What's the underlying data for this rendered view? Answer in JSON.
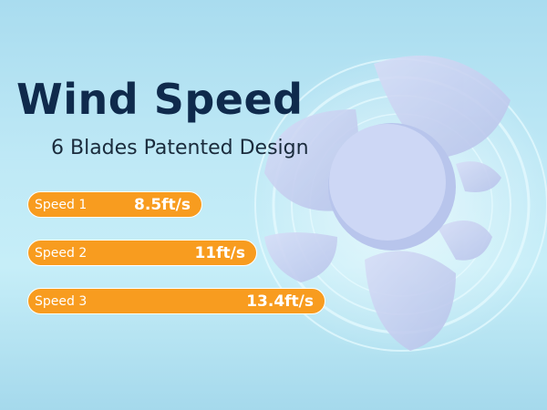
{
  "title": "Wind Speed",
  "subtitle": "6 Blades Patented Design",
  "speeds": [
    {
      "label": "Speed 1",
      "value": "8.5ft/s",
      "level": 8.5
    },
    {
      "label": "Speed 2",
      "value": "11ft/s",
      "level": 11
    },
    {
      "label": "Speed 3",
      "value": "13.4ft/s",
      "level": 13.4
    }
  ],
  "colors": {
    "bar": "#f89c1f",
    "title": "#0f2a4c",
    "fan": "#c7d3f2"
  }
}
